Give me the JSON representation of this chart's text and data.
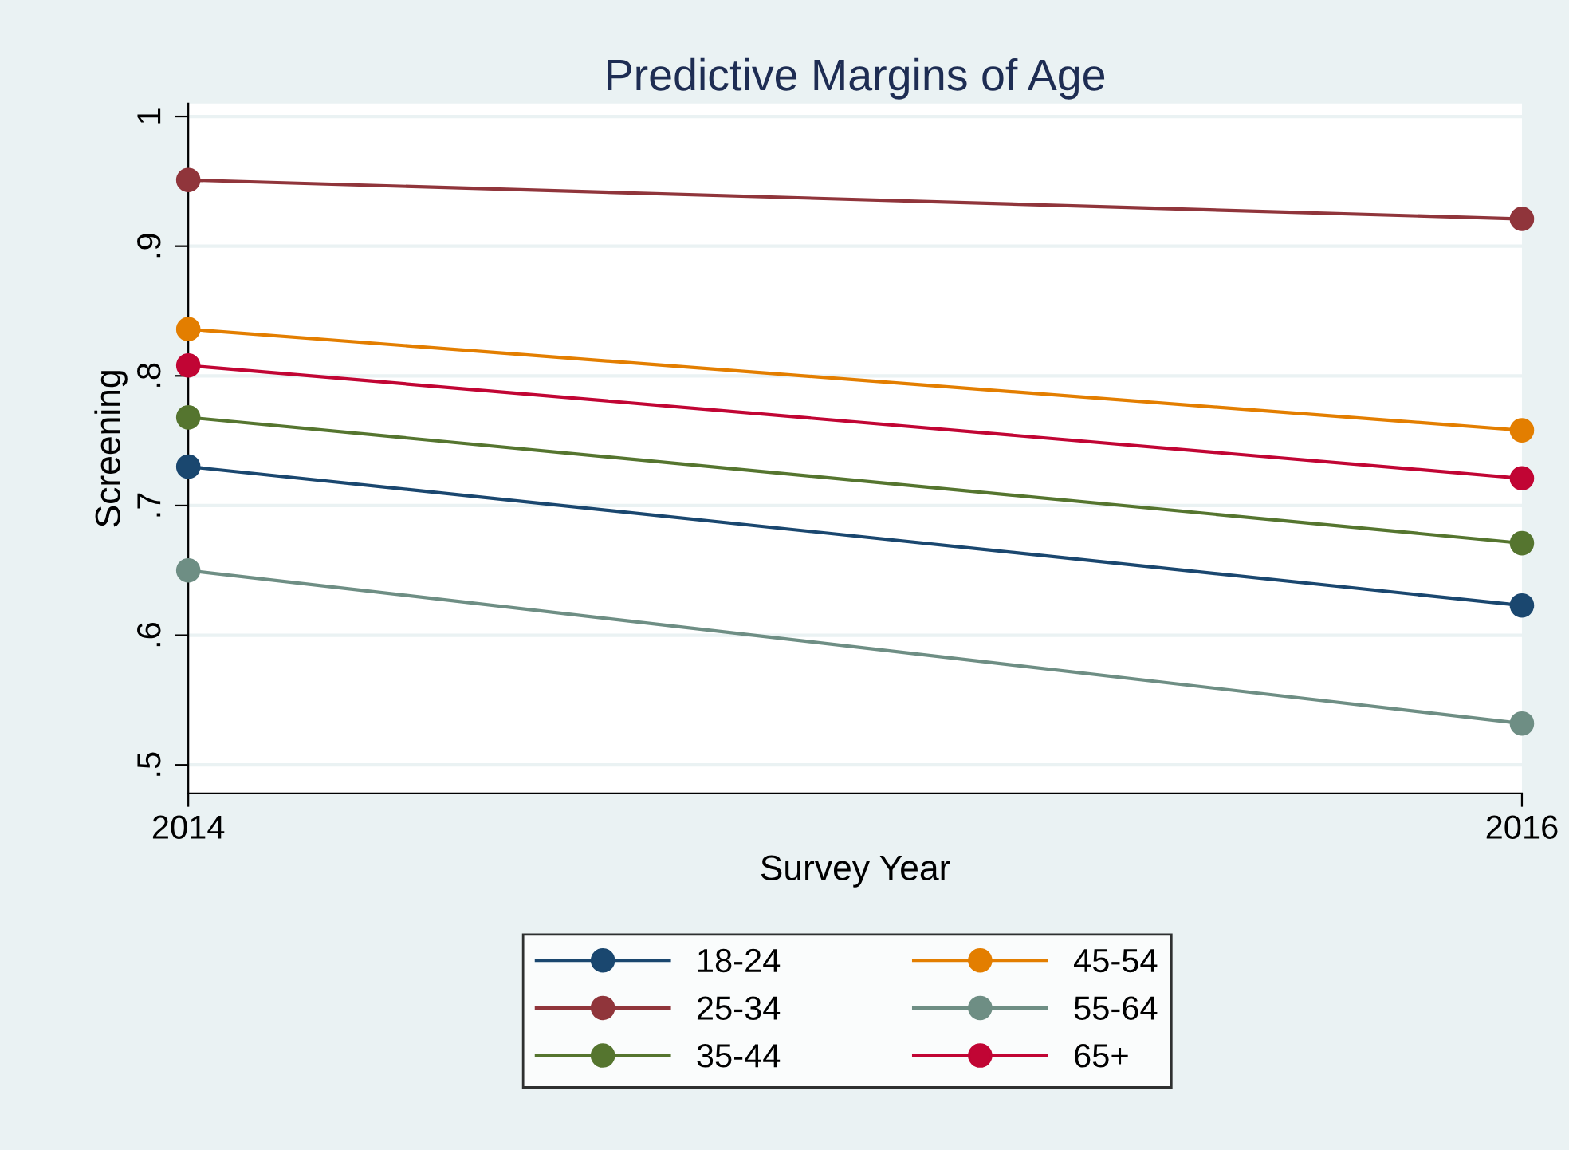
{
  "chart_data": {
    "type": "line",
    "title": "Predictive Margins of Age",
    "xlabel": "Survey Year",
    "ylabel": "Screening",
    "x": [
      2014,
      2016
    ],
    "series": [
      {
        "name": "18-24",
        "color": "#1a476f",
        "values": [
          0.73,
          0.623
        ]
      },
      {
        "name": "25-34",
        "color": "#90353b",
        "values": [
          0.951,
          0.921
        ]
      },
      {
        "name": "35-44",
        "color": "#55752f",
        "values": [
          0.768,
          0.671
        ]
      },
      {
        "name": "45-54",
        "color": "#e37e00",
        "values": [
          0.836,
          0.758
        ]
      },
      {
        "name": "55-64",
        "color": "#6e8e84",
        "values": [
          0.65,
          0.532
        ]
      },
      {
        "name": "65+",
        "color": "#c10534",
        "values": [
          0.808,
          0.721
        ]
      }
    ],
    "xlim": [
      2014,
      2016
    ],
    "xticks": [
      2014,
      2016
    ],
    "ylim": [
      0.478,
      1.01
    ],
    "yticks": [
      {
        "value": 0.5,
        "label": ".5"
      },
      {
        "value": 0.6,
        "label": ".6"
      },
      {
        "value": 0.7,
        "label": ".7"
      },
      {
        "value": 0.8,
        "label": ".8"
      },
      {
        "value": 0.9,
        "label": ".9"
      },
      {
        "value": 1,
        "label": "1"
      }
    ],
    "grid": "y",
    "legend": "bottom",
    "marker": "circle",
    "line_style": "solid"
  }
}
